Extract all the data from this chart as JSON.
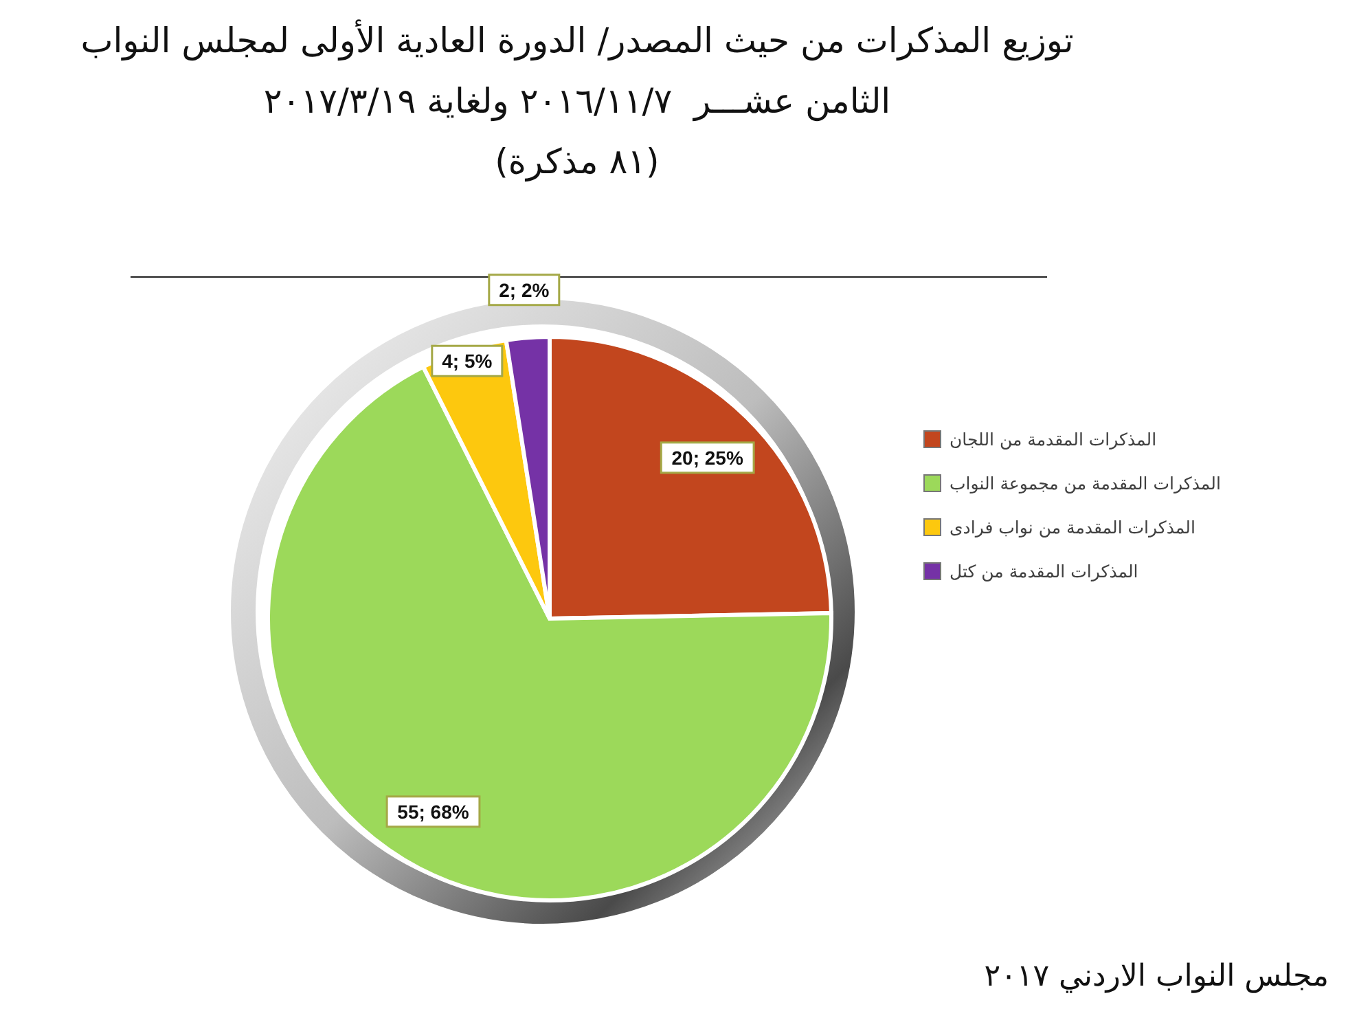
{
  "chart_data": {
    "type": "pie",
    "title": "توزيع المذكرات من حيث المصدر/ الدورة العادية الأولى لمجلس النواب\nالثامن عشـــر  ٢٠١٦/١١/٧ ولغاية ٢٠١٧/٣/١٩",
    "subtitle": "(٨١ مذكرة)",
    "categories": [
      "المذكرات المقدمة من اللجان",
      "المذكرات المقدمة من مجموعة النواب",
      "المذكرات المقدمة من نواب فرادى",
      "المذكرات المقدمة من كتل"
    ],
    "values": [
      20,
      55,
      4,
      2
    ],
    "colors": [
      "#c2461e",
      "#9cd95a",
      "#fdc80e",
      "#7532a6"
    ],
    "value_labels": [
      "20; 25%",
      "55; 68%",
      "4; 5%",
      "2; 2%"
    ],
    "legend": "right",
    "annotations": [
      "مجلس النواب الاردني ٢٠١٧"
    ]
  }
}
